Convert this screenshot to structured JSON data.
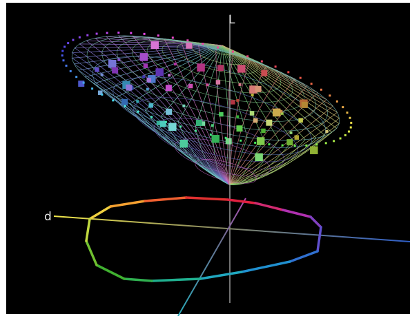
{
  "labels": {
    "vertical_axis": "L",
    "horizontal_axis": "d"
  }
}
